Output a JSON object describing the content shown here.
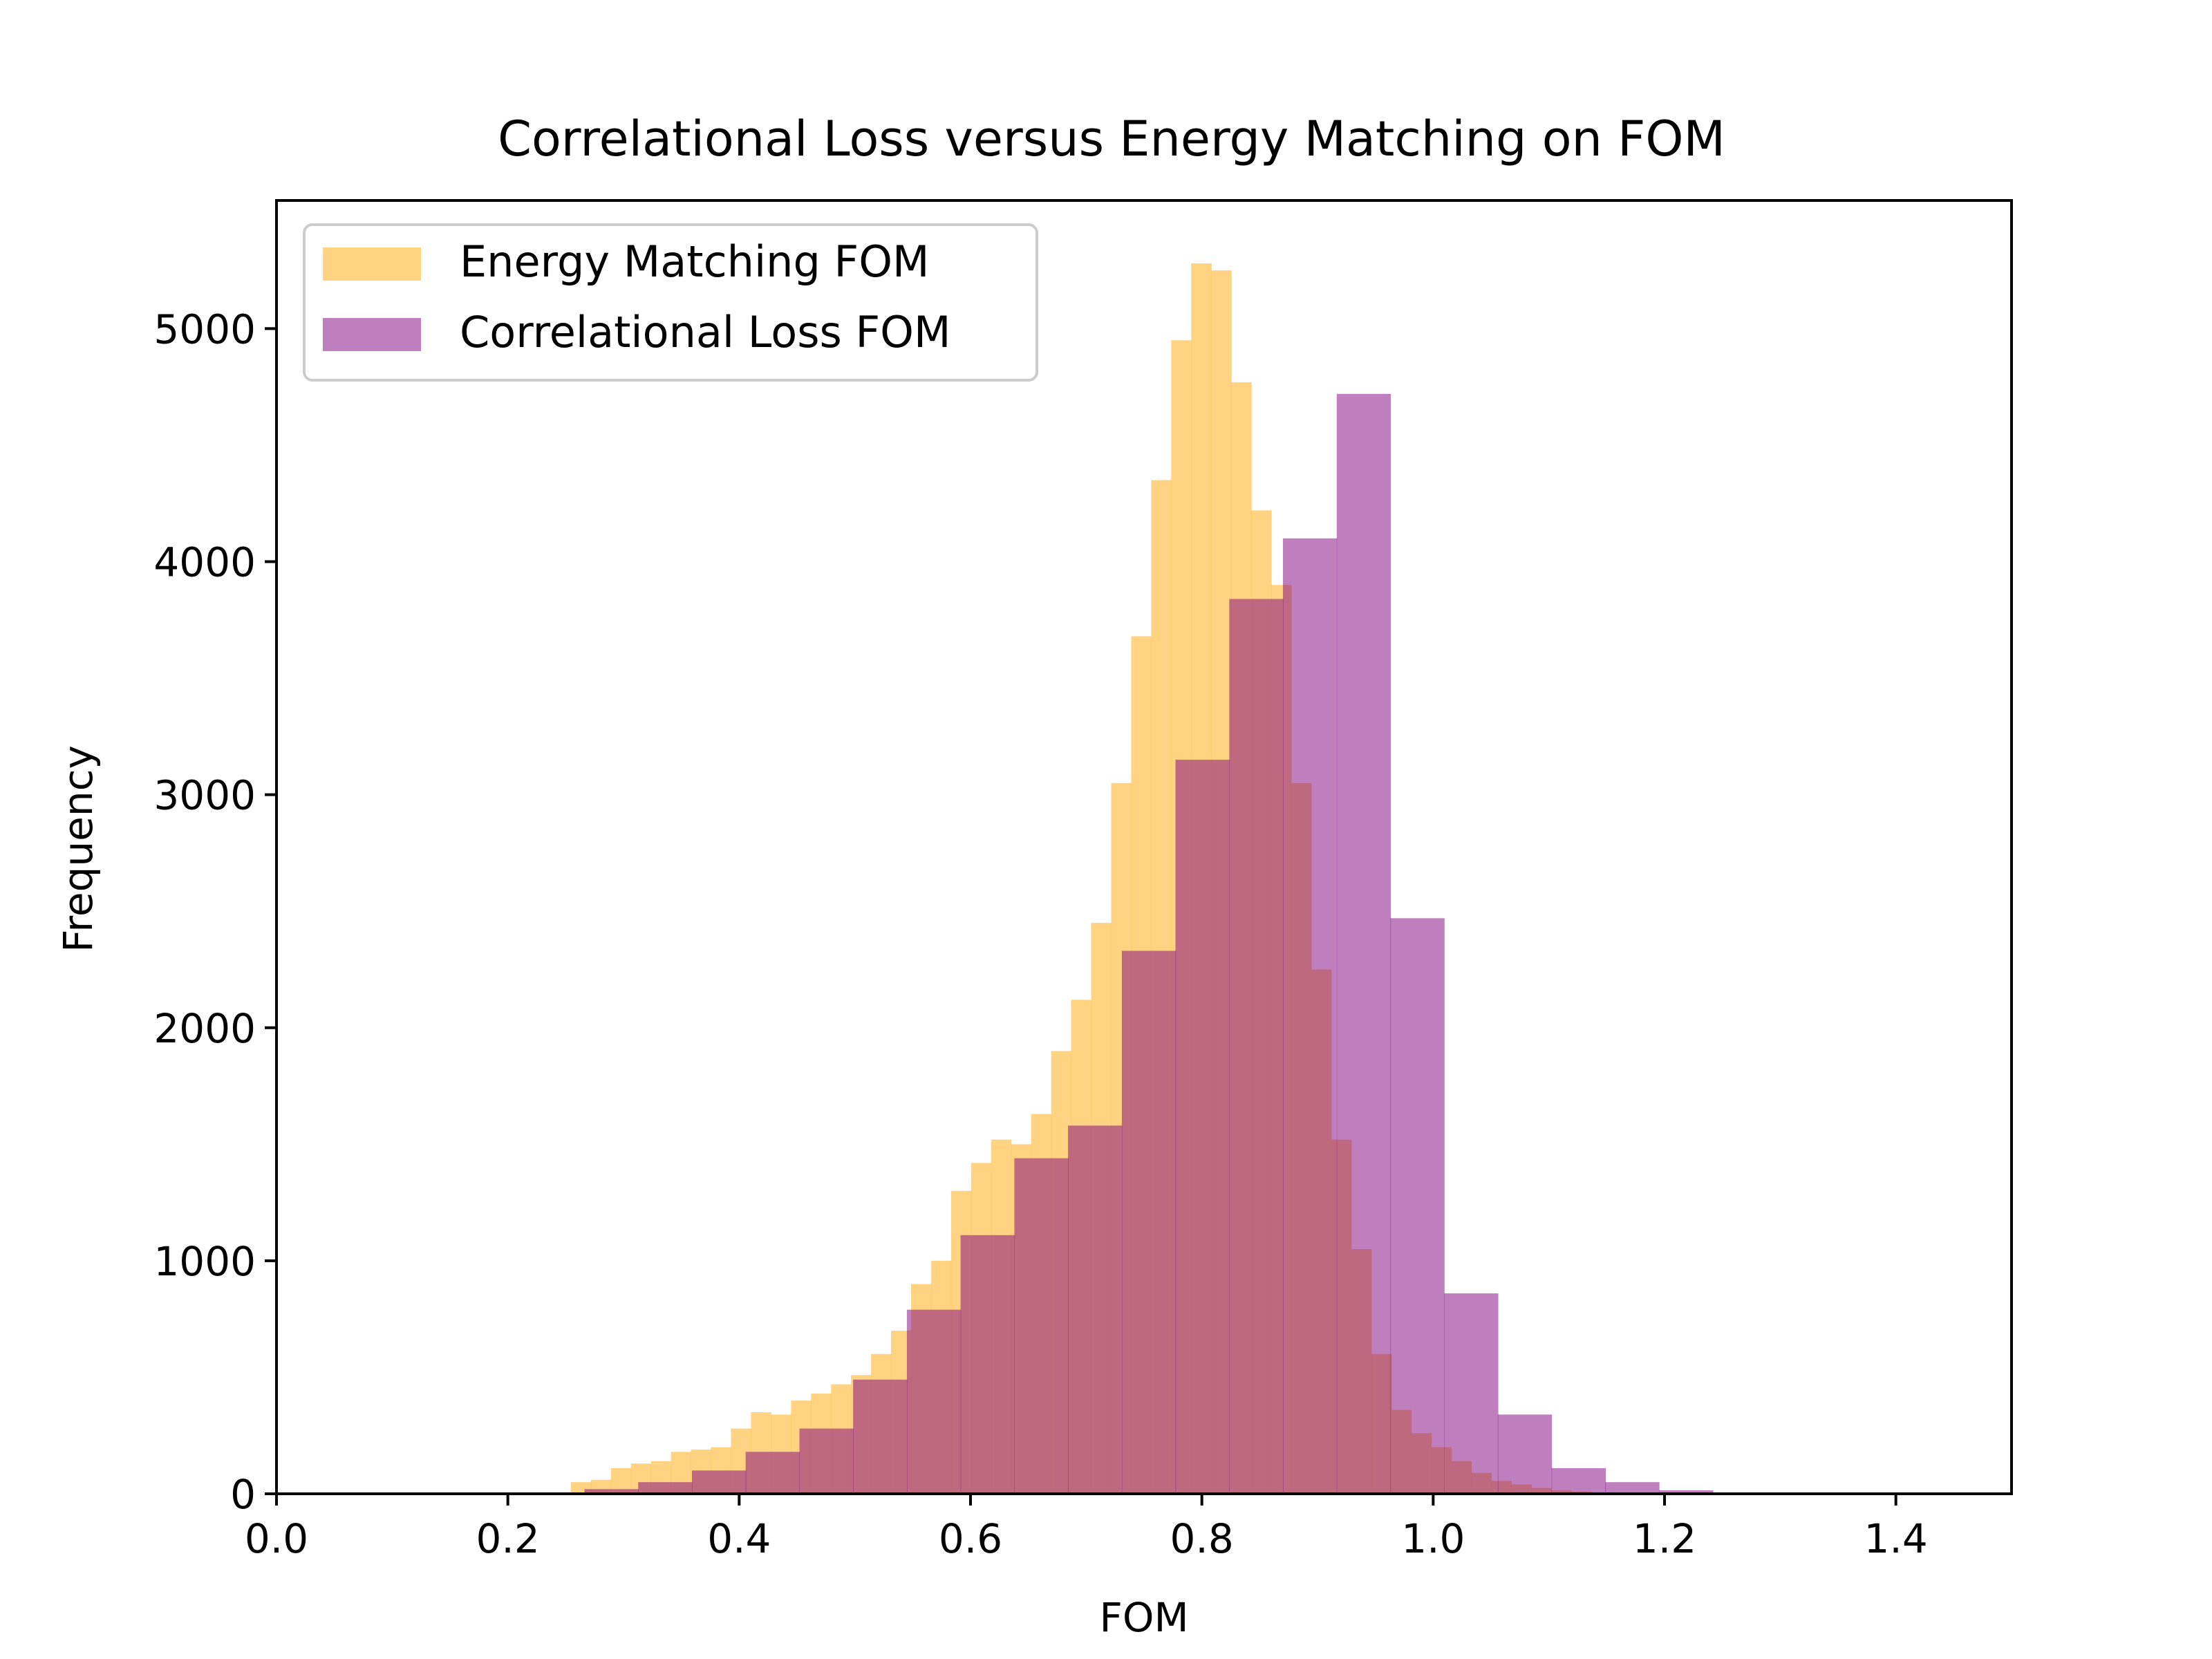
{
  "chart_data": {
    "type": "bar",
    "title": "Correlational Loss versus Energy Matching on FOM",
    "xlabel": "FOM",
    "ylabel": "Frequency",
    "xlim": [
      0.0,
      1.5
    ],
    "ylim": [
      0,
      5550
    ],
    "xticks": [
      "0.0",
      "0.2",
      "0.4",
      "0.6",
      "0.8",
      "1.0",
      "1.2",
      "1.4"
    ],
    "yticks": [
      "0",
      "1000",
      "2000",
      "3000",
      "4000",
      "5000"
    ],
    "legend": {
      "position": "top-left"
    },
    "series": [
      {
        "name": "Energy Matching FOM",
        "color": "#ffc04d",
        "opacity": 0.7,
        "bin_width": 0.01728,
        "bins_start": [
          0.2545,
          0.2718,
          0.2891,
          0.3064,
          0.3237,
          0.341,
          0.3583,
          0.3756,
          0.3929,
          0.4102,
          0.4275,
          0.4448,
          0.4621,
          0.4794,
          0.4967,
          0.514,
          0.5313,
          0.5486,
          0.5659,
          0.5832,
          0.6005,
          0.6178,
          0.6351,
          0.6524,
          0.6697,
          0.687,
          0.7043,
          0.7216,
          0.7389,
          0.7562,
          0.7735,
          0.7908,
          0.8081,
          0.8254,
          0.8427,
          0.86,
          0.8773,
          0.8946,
          0.9119,
          0.9292,
          0.9465,
          0.9638,
          0.9811,
          0.9984,
          1.0157,
          1.033,
          1.0503,
          1.0676,
          1.0849,
          1.1022,
          1.1195,
          1.1368
        ],
        "values": [
          50,
          60,
          110,
          130,
          140,
          180,
          190,
          200,
          280,
          350,
          340,
          400,
          430,
          470,
          510,
          600,
          700,
          900,
          1000,
          1300,
          1420,
          1520,
          1500,
          1630,
          1900,
          2120,
          2450,
          3050,
          3680,
          4350,
          4950,
          5280,
          5250,
          4770,
          4220,
          3900,
          3050,
          2250,
          1520,
          1050,
          600,
          360,
          260,
          200,
          140,
          90,
          55,
          40,
          25,
          15,
          10,
          5
        ]
      },
      {
        "name": "Correlational Loss FOM",
        "color": "#800080",
        "opacity": 0.5,
        "bin_width": 0.04645,
        "bins_start": [
          0.2663,
          0.3127,
          0.3592,
          0.4056,
          0.4521,
          0.4985,
          0.545,
          0.5914,
          0.6379,
          0.6843,
          0.7308,
          0.7772,
          0.8237,
          0.8701,
          0.9166,
          0.963,
          1.0095,
          1.0559,
          1.1024,
          1.1488,
          1.1953,
          1.2417
        ],
        "values": [
          20,
          50,
          100,
          180,
          280,
          490,
          790,
          1110,
          1440,
          1580,
          2330,
          3150,
          3840,
          4100,
          4720,
          2470,
          860,
          340,
          110,
          50,
          15,
          5
        ]
      }
    ]
  }
}
